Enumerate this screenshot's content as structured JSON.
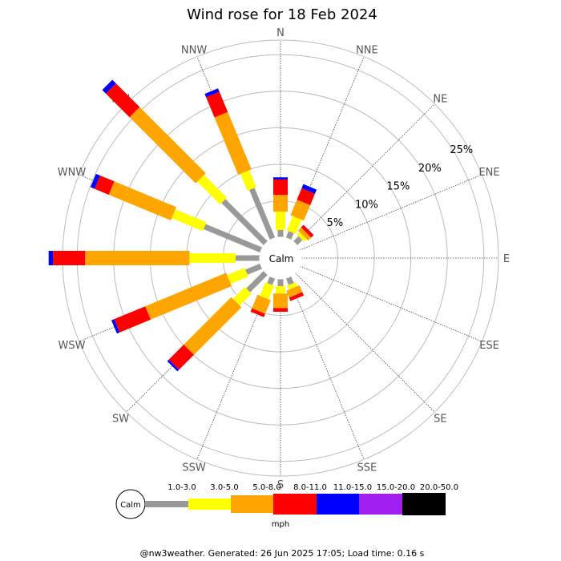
{
  "chart_data": {
    "type": "windrose",
    "title": "Wind rose for 18 Feb 2024",
    "directions": [
      "N",
      "NNE",
      "NE",
      "ENE",
      "E",
      "ESE",
      "SE",
      "SSE",
      "S",
      "SSW",
      "SW",
      "WSW",
      "W",
      "WNW",
      "NW",
      "NNW"
    ],
    "radial_ticks": [
      "5%",
      "10%",
      "15%",
      "20%",
      "25%"
    ],
    "radial_tick_values": [
      5,
      10,
      15,
      20,
      25
    ],
    "radial_max": 27,
    "calm_label": "Calm",
    "unit_label": "mph",
    "speed_bins": [
      {
        "label": "1.0-3.0",
        "color": "#999999"
      },
      {
        "label": "3.0-5.0",
        "color": "#ffff00"
      },
      {
        "label": "5.0-8.0",
        "color": "#ffa500"
      },
      {
        "label": "8.0-11.0",
        "color": "#ff0000"
      },
      {
        "label": "11.0-15.0",
        "color": "#0000ff"
      },
      {
        "label": "15.0-20.0",
        "color": "#a020f0"
      },
      {
        "label": "20.0-50.0",
        "color": "#000000"
      }
    ],
    "series": [
      {
        "direction": "N",
        "values": [
          1.0,
          2.5,
          2.3,
          2.1,
          0.3,
          0,
          0
        ]
      },
      {
        "direction": "NNE",
        "values": [
          1.0,
          2.1,
          2.3,
          1.7,
          0.6,
          0,
          0
        ]
      },
      {
        "direction": "NE",
        "values": [
          1.0,
          0.5,
          0.6,
          0.5,
          0,
          0,
          0
        ]
      },
      {
        "direction": "ENE",
        "values": [
          0,
          0,
          0,
          0,
          0,
          0,
          0
        ]
      },
      {
        "direction": "E",
        "values": [
          0,
          0,
          0,
          0,
          0,
          0,
          0
        ]
      },
      {
        "direction": "ESE",
        "values": [
          0,
          0,
          0,
          0,
          0,
          0,
          0
        ]
      },
      {
        "direction": "SE",
        "values": [
          0,
          0,
          0,
          0,
          0,
          0,
          0
        ]
      },
      {
        "direction": "SSE",
        "values": [
          1.0,
          0.6,
          1.0,
          0.5,
          0,
          0,
          0
        ]
      },
      {
        "direction": "S",
        "values": [
          1.0,
          1.0,
          2.0,
          0.5,
          0,
          0,
          0
        ]
      },
      {
        "direction": "SSW",
        "values": [
          1.0,
          2.0,
          2.0,
          0.5,
          0,
          0,
          0
        ]
      },
      {
        "direction": "SW",
        "values": [
          3.4,
          2.3,
          9.2,
          2.9,
          0.3,
          0,
          0
        ]
      },
      {
        "direction": "WSW",
        "values": [
          2.2,
          2.6,
          12.0,
          4.6,
          0.4,
          0,
          0
        ]
      },
      {
        "direction": "W",
        "values": [
          3.3,
          6.3,
          14.3,
          4.4,
          0.6,
          0,
          0
        ]
      },
      {
        "direction": "WNW",
        "values": [
          8.4,
          4.6,
          9.2,
          2.1,
          0.6,
          0,
          0
        ]
      },
      {
        "direction": "NW",
        "values": [
          8.2,
          4.4,
          12.8,
          4.6,
          0.7,
          0,
          0
        ]
      },
      {
        "direction": "NNW",
        "values": [
          7.4,
          2.5,
          8.5,
          3.0,
          0.5,
          0,
          0
        ]
      }
    ]
  },
  "footer": {
    "text": "@nw3weather. Generated: 26 Jun 2025 17:05; Load time: 0.16 s"
  }
}
